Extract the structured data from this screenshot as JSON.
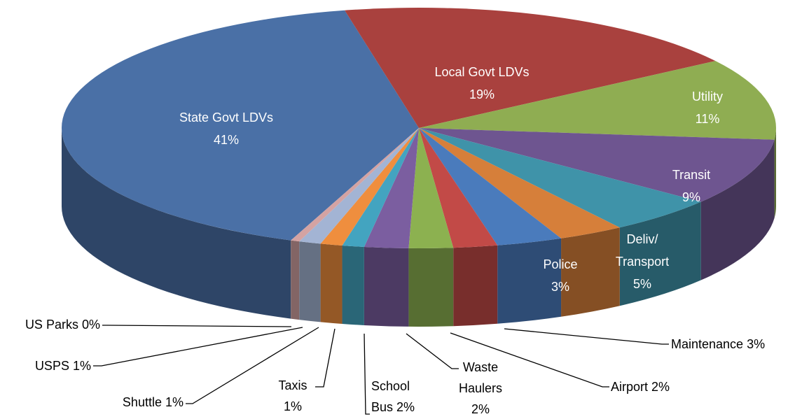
{
  "chart_data": {
    "type": "pie3d",
    "categories": [
      "State Govt LDVs",
      "Local Govt LDVs",
      "Utility",
      "Transit",
      "Deliv/\nTransport",
      "Police",
      "Maintenance",
      "Airport",
      "Waste\nHaulers",
      "School\nBus",
      "Taxis",
      "Shuttle",
      "USPS",
      "US Parks"
    ],
    "values": [
      41,
      19,
      11,
      9,
      5,
      3,
      3,
      2,
      2,
      2,
      1,
      1,
      1,
      0.4
    ],
    "value_labels": [
      "41%",
      "19%",
      "11%",
      "9%",
      "5%",
      "3%",
      "3%",
      "2%",
      "2%",
      "2%",
      "1%",
      "1%",
      "1%",
      "0%"
    ],
    "colors": [
      "#4a70a6",
      "#a9413e",
      "#8fad52",
      "#6e5590",
      "#3f93a9",
      "#d67f3a",
      "#4a7bbc",
      "#c24a47",
      "#8cb150",
      "#7b5ea0",
      "#43a4c0",
      "#ef8e3e",
      "#a3b4d4",
      "#d4a3a3"
    ]
  }
}
